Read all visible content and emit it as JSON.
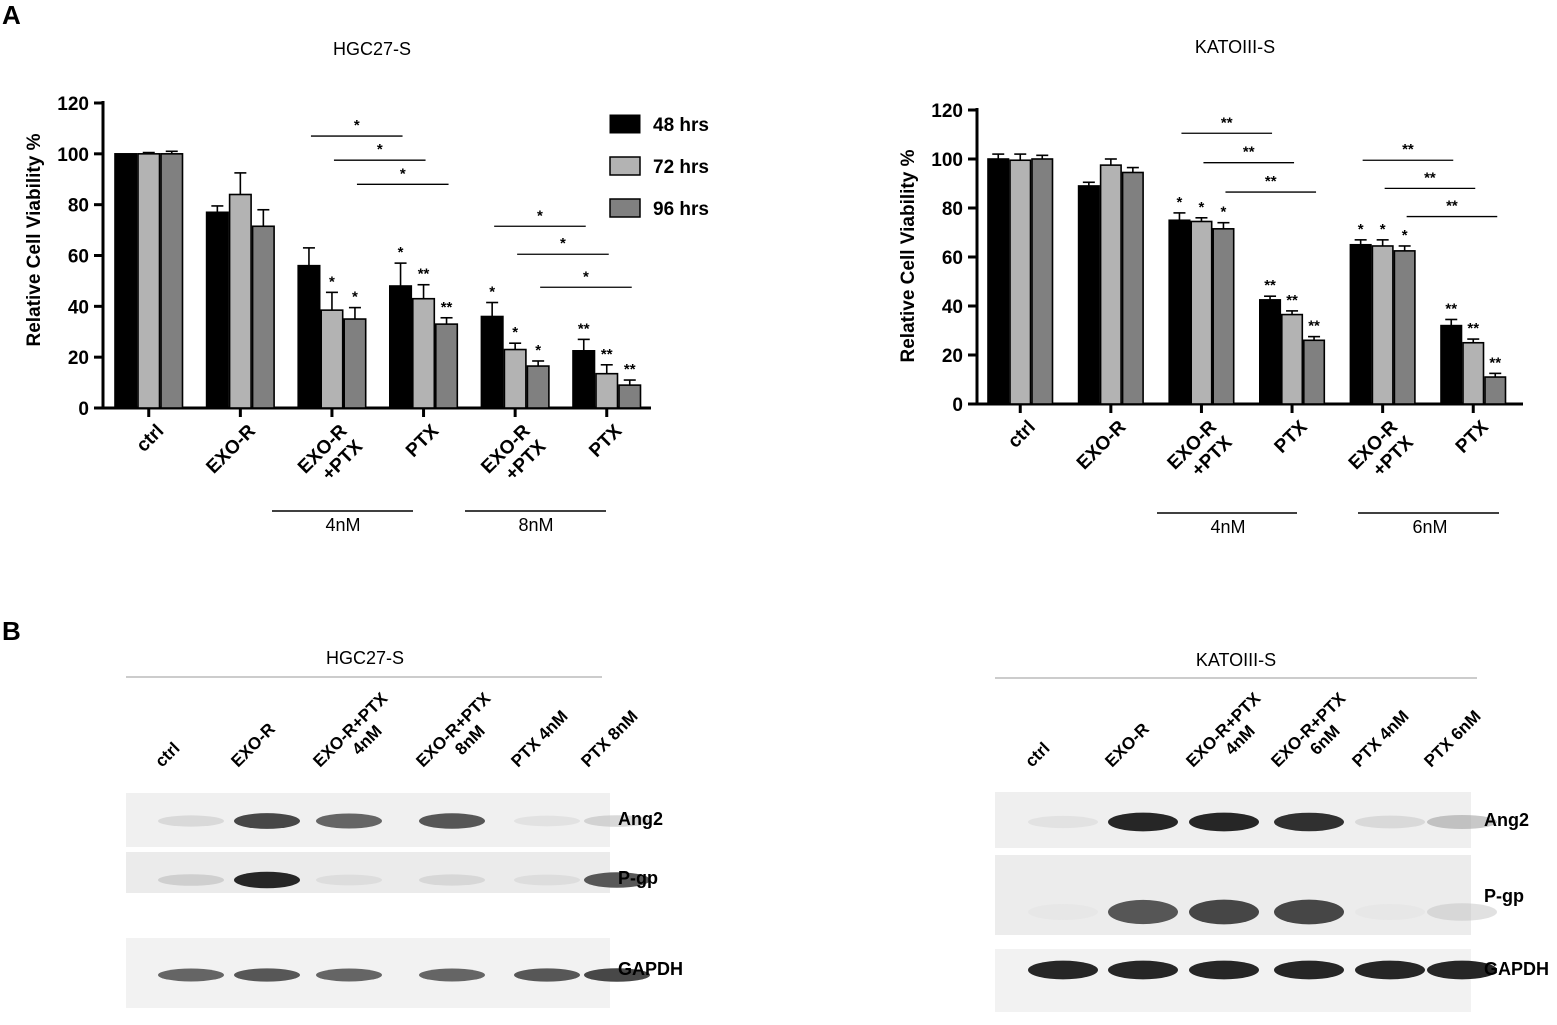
{
  "panel_labels": {
    "a": "A",
    "b": "B"
  },
  "legend": [
    {
      "label": "48 hrs",
      "color": "#000000"
    },
    {
      "label": "72 hrs",
      "color": "#b3b3b3"
    },
    {
      "label": "96 hrs",
      "color": "#808080"
    }
  ],
  "chart_data": [
    {
      "type": "bar",
      "title": "HGC27-S",
      "ylabel": "Relative Cell Viability %",
      "xlabel": "",
      "ylim": [
        0,
        120
      ],
      "yticks": [
        0,
        20,
        40,
        60,
        80,
        100,
        120
      ],
      "categories": [
        "ctrl",
        "EXO-R",
        "EXO-R\n+PTX",
        "PTX",
        "EXO-R\n+PTX",
        "PTX"
      ],
      "groups": [
        {
          "label": "4nM",
          "from": 2,
          "to": 3
        },
        {
          "label": "8nM",
          "from": 4,
          "to": 5
        }
      ],
      "series": [
        {
          "name": "48 hrs",
          "values": [
            100,
            77,
            56,
            48,
            36,
            22.5
          ],
          "errors": [
            0,
            2.5,
            7,
            9,
            5.5,
            4.5
          ],
          "stars": [
            "",
            "",
            "",
            "*",
            "*",
            "**"
          ]
        },
        {
          "name": "72 hrs",
          "values": [
            100,
            84,
            38.5,
            43,
            23,
            13.5
          ],
          "errors": [
            0.5,
            8.5,
            7,
            5.5,
            2.5,
            3.5
          ],
          "stars": [
            "",
            "",
            "*",
            "**",
            "*",
            "**"
          ]
        },
        {
          "name": "96 hrs",
          "values": [
            100,
            71.5,
            35,
            33,
            16.5,
            9
          ],
          "errors": [
            1,
            6.5,
            4.5,
            2.5,
            2,
            2
          ],
          "stars": [
            "",
            "",
            "*",
            "**",
            "*",
            "**"
          ]
        }
      ],
      "comparisons": [
        {
          "from_cat": 2,
          "to_cat": 3,
          "series": 0,
          "label": "*",
          "y": 107
        },
        {
          "from_cat": 2,
          "to_cat": 3,
          "series": 1,
          "label": "*",
          "y": 97.5
        },
        {
          "from_cat": 2,
          "to_cat": 3,
          "series": 2,
          "label": "*",
          "y": 88
        },
        {
          "from_cat": 4,
          "to_cat": 5,
          "series": 0,
          "label": "*",
          "y": 71.5
        },
        {
          "from_cat": 4,
          "to_cat": 5,
          "series": 1,
          "label": "*",
          "y": 60.5
        },
        {
          "from_cat": 4,
          "to_cat": 5,
          "series": 2,
          "label": "*",
          "y": 47.5
        }
      ]
    },
    {
      "type": "bar",
      "title": "KATOIII-S",
      "ylabel": "Relative Cell Viability %",
      "xlabel": "",
      "ylim": [
        0,
        120
      ],
      "yticks": [
        0,
        20,
        40,
        60,
        80,
        100,
        120
      ],
      "categories": [
        "ctrl",
        "EXO-R",
        "EXO-R\n+PTX",
        "PTX",
        "EXO-R\n+PTX",
        "PTX"
      ],
      "groups": [
        {
          "label": "4nM",
          "from": 2,
          "to": 3
        },
        {
          "label": "6nM",
          "from": 4,
          "to": 5
        }
      ],
      "series": [
        {
          "name": "48 hrs",
          "values": [
            100,
            89,
            75,
            42.5,
            65,
            32
          ],
          "errors": [
            2,
            1.5,
            3,
            1.5,
            2,
            2.5
          ],
          "stars": [
            "",
            "",
            "*",
            "**",
            "*",
            "**"
          ]
        },
        {
          "name": "72 hrs",
          "values": [
            99.5,
            97.5,
            74.5,
            36.5,
            64.5,
            25
          ],
          "errors": [
            2.5,
            2.5,
            1.5,
            1.5,
            2.5,
            1.5
          ],
          "stars": [
            "",
            "",
            "*",
            "**",
            "*",
            "**"
          ]
        },
        {
          "name": "96 hrs",
          "values": [
            100,
            94.5,
            71.5,
            26,
            62.5,
            11
          ],
          "errors": [
            1.5,
            2,
            2.5,
            1.5,
            2,
            1.5
          ],
          "stars": [
            "",
            "",
            "*",
            "**",
            "*",
            "**"
          ]
        }
      ],
      "comparisons": [
        {
          "from_cat": 2,
          "to_cat": 3,
          "series": 0,
          "label": "**",
          "y": 110.5
        },
        {
          "from_cat": 2,
          "to_cat": 3,
          "series": 1,
          "label": "**",
          "y": 98.5
        },
        {
          "from_cat": 2,
          "to_cat": 3,
          "series": 2,
          "label": "**",
          "y": 86.5
        },
        {
          "from_cat": 4,
          "to_cat": 5,
          "series": 0,
          "label": "**",
          "y": 99.5
        },
        {
          "from_cat": 4,
          "to_cat": 5,
          "series": 1,
          "label": "**",
          "y": 88
        },
        {
          "from_cat": 4,
          "to_cat": 5,
          "series": 2,
          "label": "**",
          "y": 76.5
        }
      ]
    }
  ],
  "blots": [
    {
      "title": "HGC27-S",
      "lanes": [
        {
          "lines": [
            "ctrl"
          ]
        },
        {
          "lines": [
            "EXO-R"
          ]
        },
        {
          "lines": [
            "EXO-R+PTX",
            "4nM"
          ]
        },
        {
          "lines": [
            "EXO-R+PTX",
            "8nM"
          ]
        },
        {
          "lines": [
            "PTX 4nM"
          ]
        },
        {
          "lines": [
            "PTX 8nM"
          ]
        }
      ],
      "rows": [
        {
          "label": "Ang2",
          "intensity": [
            0.2,
            0.85,
            0.75,
            0.8,
            0.12,
            0.25
          ]
        },
        {
          "label": "P-gp",
          "intensity": [
            0.25,
            0.95,
            0.15,
            0.2,
            0.15,
            0.8
          ]
        },
        {
          "label": "GAPDH",
          "intensity": [
            0.75,
            0.8,
            0.75,
            0.75,
            0.8,
            0.85
          ]
        }
      ]
    },
    {
      "title": "KATOIII-S",
      "lanes": [
        {
          "lines": [
            "ctrl"
          ]
        },
        {
          "lines": [
            "EXO-R"
          ]
        },
        {
          "lines": [
            "EXO-R+PTX",
            "4nM"
          ]
        },
        {
          "lines": [
            "EXO-R+PTX",
            "6nM"
          ]
        },
        {
          "lines": [
            "PTX 4nM"
          ]
        },
        {
          "lines": [
            "PTX 6nM"
          ]
        }
      ],
      "rows": [
        {
          "label": "Ang2",
          "intensity": [
            0.12,
            0.95,
            0.95,
            0.92,
            0.2,
            0.35
          ]
        },
        {
          "label": "P-gp",
          "intensity": [
            0.05,
            0.8,
            0.85,
            0.85,
            0.05,
            0.2
          ]
        },
        {
          "label": "GAPDH",
          "intensity": [
            0.95,
            0.95,
            0.95,
            0.95,
            0.95,
            0.95
          ]
        }
      ]
    }
  ]
}
